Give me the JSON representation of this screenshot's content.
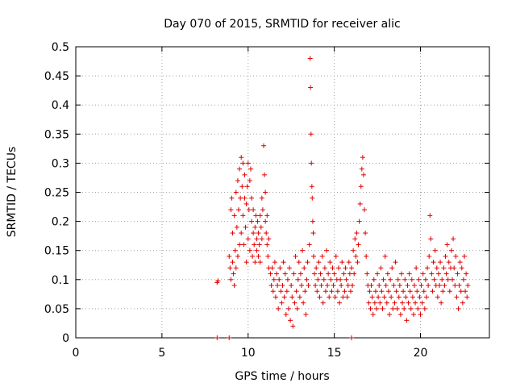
{
  "chart_data": {
    "type": "scatter",
    "title": "Day 070 of 2015, SRMTID for receiver alic",
    "xlabel": "GPS time / hours",
    "ylabel": "SRMTID / TECUs",
    "xlim": [
      0,
      24
    ],
    "ylim": [
      0,
      0.5
    ],
    "x_ticks": [
      "0",
      "5",
      "10",
      "15",
      "20"
    ],
    "y_ticks": [
      "0",
      "0.05",
      "0.1",
      "0.15",
      "0.2",
      "0.25",
      "0.3",
      "0.35",
      "0.4",
      "0.45",
      "0.5"
    ],
    "grid": true,
    "marker": "+",
    "series_color": "#e00000",
    "points": [
      [
        8.2,
        0.095
      ],
      [
        8.25,
        0.098
      ],
      [
        8.2,
        0.0
      ],
      [
        8.9,
        0.0
      ],
      [
        16.0,
        0.0
      ],
      [
        8.9,
        0.14
      ],
      [
        8.95,
        0.12
      ],
      [
        9.0,
        0.1
      ],
      [
        9.0,
        0.22
      ],
      [
        9.05,
        0.24
      ],
      [
        9.1,
        0.18
      ],
      [
        9.1,
        0.13
      ],
      [
        9.15,
        0.11
      ],
      [
        9.2,
        0.09
      ],
      [
        9.2,
        0.21
      ],
      [
        9.25,
        0.15
      ],
      [
        9.3,
        0.12
      ],
      [
        9.3,
        0.25
      ],
      [
        9.35,
        0.19
      ],
      [
        9.4,
        0.14
      ],
      [
        9.4,
        0.27
      ],
      [
        9.45,
        0.22
      ],
      [
        9.5,
        0.16
      ],
      [
        9.5,
        0.29
      ],
      [
        9.55,
        0.24
      ],
      [
        9.6,
        0.31
      ],
      [
        9.6,
        0.18
      ],
      [
        9.65,
        0.26
      ],
      [
        9.7,
        0.21
      ],
      [
        9.7,
        0.3
      ],
      [
        9.75,
        0.16
      ],
      [
        9.8,
        0.24
      ],
      [
        9.8,
        0.28
      ],
      [
        9.85,
        0.19
      ],
      [
        9.9,
        0.23
      ],
      [
        9.9,
        0.13
      ],
      [
        9.95,
        0.26
      ],
      [
        10.0,
        0.3
      ],
      [
        10.0,
        0.17
      ],
      [
        10.05,
        0.22
      ],
      [
        10.1,
        0.27
      ],
      [
        10.1,
        0.15
      ],
      [
        10.15,
        0.29
      ],
      [
        10.2,
        0.2
      ],
      [
        10.2,
        0.24
      ],
      [
        10.25,
        0.14
      ],
      [
        10.3,
        0.18
      ],
      [
        10.3,
        0.22
      ],
      [
        10.35,
        0.16
      ],
      [
        10.4,
        0.19
      ],
      [
        10.4,
        0.13
      ],
      [
        10.45,
        0.21
      ],
      [
        10.5,
        0.17
      ],
      [
        10.5,
        0.15
      ],
      [
        10.55,
        0.2
      ],
      [
        10.6,
        0.14
      ],
      [
        10.6,
        0.18
      ],
      [
        10.65,
        0.16
      ],
      [
        10.7,
        0.21
      ],
      [
        10.7,
        0.13
      ],
      [
        10.75,
        0.19
      ],
      [
        10.8,
        0.24
      ],
      [
        10.8,
        0.17
      ],
      [
        10.85,
        0.22
      ],
      [
        10.9,
        0.33
      ],
      [
        10.95,
        0.28
      ],
      [
        11.0,
        0.25
      ],
      [
        11.0,
        0.2
      ],
      [
        11.05,
        0.18
      ],
      [
        11.1,
        0.16
      ],
      [
        11.1,
        0.21
      ],
      [
        11.15,
        0.14
      ],
      [
        11.2,
        0.12
      ],
      [
        11.2,
        0.17
      ],
      [
        11.3,
        0.11
      ],
      [
        11.35,
        0.09
      ],
      [
        11.4,
        0.12
      ],
      [
        11.45,
        0.08
      ],
      [
        11.5,
        0.1
      ],
      [
        11.55,
        0.13
      ],
      [
        11.6,
        0.07
      ],
      [
        11.65,
        0.11
      ],
      [
        11.7,
        0.09
      ],
      [
        11.75,
        0.05
      ],
      [
        11.8,
        0.1
      ],
      [
        11.85,
        0.12
      ],
      [
        11.9,
        0.08
      ],
      [
        11.95,
        0.06
      ],
      [
        12.0,
        0.09
      ],
      [
        12.05,
        0.13
      ],
      [
        12.1,
        0.07
      ],
      [
        12.15,
        0.11
      ],
      [
        12.2,
        0.04
      ],
      [
        12.25,
        0.08
      ],
      [
        12.3,
        0.1
      ],
      [
        12.35,
        0.05
      ],
      [
        12.4,
        0.12
      ],
      [
        12.45,
        0.03
      ],
      [
        12.5,
        0.09
      ],
      [
        12.55,
        0.07
      ],
      [
        12.6,
        0.02
      ],
      [
        12.65,
        0.11
      ],
      [
        12.7,
        0.06
      ],
      [
        12.75,
        0.14
      ],
      [
        12.8,
        0.08
      ],
      [
        12.85,
        0.05
      ],
      [
        12.9,
        0.1
      ],
      [
        12.95,
        0.13
      ],
      [
        13.0,
        0.07
      ],
      [
        13.05,
        0.11
      ],
      [
        13.1,
        0.09
      ],
      [
        13.15,
        0.15
      ],
      [
        13.2,
        0.06
      ],
      [
        13.25,
        0.12
      ],
      [
        13.3,
        0.08
      ],
      [
        13.35,
        0.04
      ],
      [
        13.4,
        0.1
      ],
      [
        13.45,
        0.13
      ],
      [
        13.5,
        0.09
      ],
      [
        13.55,
        0.16
      ],
      [
        13.6,
        0.48
      ],
      [
        13.62,
        0.43
      ],
      [
        13.65,
        0.35
      ],
      [
        13.67,
        0.3
      ],
      [
        13.7,
        0.26
      ],
      [
        13.72,
        0.24
      ],
      [
        13.75,
        0.2
      ],
      [
        13.78,
        0.18
      ],
      [
        13.8,
        0.14
      ],
      [
        13.85,
        0.11
      ],
      [
        13.9,
        0.09
      ],
      [
        13.95,
        0.12
      ],
      [
        14.0,
        0.08
      ],
      [
        14.05,
        0.1
      ],
      [
        14.1,
        0.13
      ],
      [
        14.15,
        0.07
      ],
      [
        14.2,
        0.11
      ],
      [
        14.25,
        0.09
      ],
      [
        14.3,
        0.14
      ],
      [
        14.35,
        0.06
      ],
      [
        14.4,
        0.1
      ],
      [
        14.45,
        0.12
      ],
      [
        14.5,
        0.08
      ],
      [
        14.55,
        0.15
      ],
      [
        14.6,
        0.09
      ],
      [
        14.65,
        0.11
      ],
      [
        14.7,
        0.07
      ],
      [
        14.75,
        0.13
      ],
      [
        14.8,
        0.1
      ],
      [
        14.85,
        0.08
      ],
      [
        14.9,
        0.12
      ],
      [
        14.95,
        0.09
      ],
      [
        15.0,
        0.11
      ],
      [
        15.05,
        0.07
      ],
      [
        15.1,
        0.14
      ],
      [
        15.15,
        0.1
      ],
      [
        15.2,
        0.08
      ],
      [
        15.25,
        0.12
      ],
      [
        15.3,
        0.06
      ],
      [
        15.35,
        0.1
      ],
      [
        15.4,
        0.09
      ],
      [
        15.45,
        0.13
      ],
      [
        15.5,
        0.07
      ],
      [
        15.55,
        0.11
      ],
      [
        15.6,
        0.08
      ],
      [
        15.65,
        0.12
      ],
      [
        15.7,
        0.1
      ],
      [
        15.75,
        0.07
      ],
      [
        15.8,
        0.09
      ],
      [
        15.85,
        0.13
      ],
      [
        15.9,
        0.11
      ],
      [
        15.95,
        0.08
      ],
      [
        16.0,
        0.12
      ],
      [
        16.05,
        0.09
      ],
      [
        16.1,
        0.15
      ],
      [
        16.15,
        0.11
      ],
      [
        16.2,
        0.17
      ],
      [
        16.25,
        0.14
      ],
      [
        16.3,
        0.18
      ],
      [
        16.35,
        0.13
      ],
      [
        16.4,
        0.16
      ],
      [
        16.45,
        0.2
      ],
      [
        16.5,
        0.23
      ],
      [
        16.55,
        0.26
      ],
      [
        16.6,
        0.29
      ],
      [
        16.65,
        0.31
      ],
      [
        16.7,
        0.28
      ],
      [
        16.75,
        0.22
      ],
      [
        16.8,
        0.18
      ],
      [
        16.85,
        0.14
      ],
      [
        16.9,
        0.11
      ],
      [
        16.95,
        0.09
      ],
      [
        17.0,
        0.06
      ],
      [
        17.05,
        0.08
      ],
      [
        17.1,
        0.05
      ],
      [
        17.15,
        0.09
      ],
      [
        17.2,
        0.07
      ],
      [
        17.25,
        0.04
      ],
      [
        17.3,
        0.1
      ],
      [
        17.35,
        0.06
      ],
      [
        17.4,
        0.08
      ],
      [
        17.45,
        0.05
      ],
      [
        17.5,
        0.11
      ],
      [
        17.55,
        0.07
      ],
      [
        17.6,
        0.09
      ],
      [
        17.65,
        0.06
      ],
      [
        17.7,
        0.12
      ],
      [
        17.75,
        0.08
      ],
      [
        17.8,
        0.05
      ],
      [
        17.85,
        0.1
      ],
      [
        17.9,
        0.07
      ],
      [
        17.95,
        0.14
      ],
      [
        18.0,
        0.09
      ],
      [
        18.05,
        0.06
      ],
      [
        18.1,
        0.11
      ],
      [
        18.15,
        0.08
      ],
      [
        18.2,
        0.04
      ],
      [
        18.25,
        0.1
      ],
      [
        18.3,
        0.07
      ],
      [
        18.35,
        0.12
      ],
      [
        18.4,
        0.05
      ],
      [
        18.45,
        0.09
      ],
      [
        18.5,
        0.06
      ],
      [
        18.55,
        0.13
      ],
      [
        18.6,
        0.08
      ],
      [
        18.65,
        0.05
      ],
      [
        18.7,
        0.1
      ],
      [
        18.75,
        0.07
      ],
      [
        18.8,
        0.09
      ],
      [
        18.85,
        0.04
      ],
      [
        18.9,
        0.11
      ],
      [
        18.95,
        0.06
      ],
      [
        19.0,
        0.08
      ],
      [
        19.05,
        0.05
      ],
      [
        19.1,
        0.1
      ],
      [
        19.15,
        0.07
      ],
      [
        19.2,
        0.03
      ],
      [
        19.25,
        0.09
      ],
      [
        19.3,
        0.06
      ],
      [
        19.35,
        0.11
      ],
      [
        19.4,
        0.08
      ],
      [
        19.45,
        0.05
      ],
      [
        19.5,
        0.1
      ],
      [
        19.55,
        0.07
      ],
      [
        19.6,
        0.04
      ],
      [
        19.65,
        0.09
      ],
      [
        19.7,
        0.06
      ],
      [
        19.75,
        0.12
      ],
      [
        19.8,
        0.08
      ],
      [
        19.85,
        0.05
      ],
      [
        19.9,
        0.1
      ],
      [
        19.95,
        0.07
      ],
      [
        20.0,
        0.04
      ],
      [
        20.05,
        0.09
      ],
      [
        20.1,
        0.06
      ],
      [
        20.15,
        0.11
      ],
      [
        20.2,
        0.08
      ],
      [
        20.25,
        0.05
      ],
      [
        20.3,
        0.1
      ],
      [
        20.35,
        0.07
      ],
      [
        20.4,
        0.12
      ],
      [
        20.45,
        0.09
      ],
      [
        20.5,
        0.14
      ],
      [
        20.55,
        0.21
      ],
      [
        20.6,
        0.17
      ],
      [
        20.65,
        0.11
      ],
      [
        20.7,
        0.08
      ],
      [
        20.75,
        0.13
      ],
      [
        20.8,
        0.1
      ],
      [
        20.85,
        0.15
      ],
      [
        20.9,
        0.09
      ],
      [
        20.95,
        0.12
      ],
      [
        21.0,
        0.07
      ],
      [
        21.05,
        0.11
      ],
      [
        21.1,
        0.09
      ],
      [
        21.15,
        0.13
      ],
      [
        21.2,
        0.06
      ],
      [
        21.25,
        0.1
      ],
      [
        21.3,
        0.08
      ],
      [
        21.35,
        0.12
      ],
      [
        21.4,
        0.09
      ],
      [
        21.45,
        0.14
      ],
      [
        21.5,
        0.11
      ],
      [
        21.55,
        0.16
      ],
      [
        21.6,
        0.1
      ],
      [
        21.65,
        0.13
      ],
      [
        21.7,
        0.08
      ],
      [
        21.75,
        0.12
      ],
      [
        21.8,
        0.15
      ],
      [
        21.85,
        0.1
      ],
      [
        21.9,
        0.17
      ],
      [
        21.95,
        0.12
      ],
      [
        22.0,
        0.09
      ],
      [
        22.05,
        0.14
      ],
      [
        22.1,
        0.07
      ],
      [
        22.15,
        0.11
      ],
      [
        22.2,
        0.05
      ],
      [
        22.25,
        0.09
      ],
      [
        22.3,
        0.13
      ],
      [
        22.35,
        0.08
      ],
      [
        22.4,
        0.12
      ],
      [
        22.45,
        0.06
      ],
      [
        22.5,
        0.1
      ],
      [
        22.55,
        0.14
      ],
      [
        22.6,
        0.08
      ],
      [
        22.65,
        0.11
      ],
      [
        22.7,
        0.07
      ],
      [
        22.75,
        0.09
      ]
    ]
  }
}
